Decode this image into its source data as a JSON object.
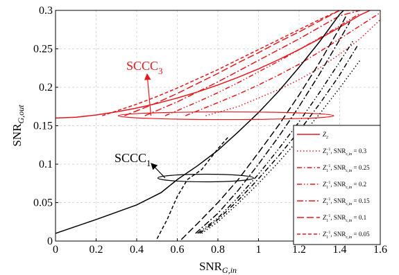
{
  "chart_data": {
    "type": "line",
    "xlabel": "SNR",
    "xlabel_sub": "G,in",
    "ylabel": "SNR",
    "ylabel_sub": "G,out",
    "xlim": [
      0,
      1.6
    ],
    "ylim": [
      0,
      0.3
    ],
    "x_ticks": [
      "0",
      "0.2",
      "0.4",
      "0.6",
      "0.8",
      "1",
      "1.2",
      "1.4",
      "1.6"
    ],
    "y_ticks": [
      "0",
      "0.05",
      "0.1",
      "0.15",
      "0.2",
      "0.25",
      "0.3"
    ],
    "grid": true,
    "legend_position": "bottom-right",
    "legend_entry_label": ", SNR",
    "legend_entry_sub": "c,in",
    "legend_eq": " = ",
    "annotations": [
      {
        "text": "SCCC",
        "sub": "3",
        "color": "#e8161c"
      },
      {
        "text": "SCCC",
        "sub": "1",
        "color": "#000000"
      }
    ],
    "series": [
      {
        "name": "Z2",
        "legend_main": "Z",
        "legend_sub": "2",
        "legend_sup": "",
        "legend_snr": "",
        "color": "#e8161c",
        "dash": "solid",
        "x": [
          0,
          0.1,
          0.2,
          0.3,
          0.4,
          0.5,
          0.6,
          0.7,
          0.8,
          0.9,
          1.0,
          1.1,
          1.2,
          1.3,
          1.4,
          1.5,
          1.55
        ],
        "y": [
          0.16,
          0.161,
          0.164,
          0.168,
          0.173,
          0.179,
          0.186,
          0.194,
          0.203,
          0.213,
          0.224,
          0.236,
          0.249,
          0.263,
          0.278,
          0.294,
          0.3
        ]
      },
      {
        "name": "Z1^-1, SNRc,in = 0.3",
        "legend_main": "Z",
        "legend_sub": "1",
        "legend_sup": "−1",
        "legend_snr": "0.3",
        "color": "#e8161c",
        "dash": "1.5,3",
        "x": [
          0.74,
          0.9,
          1.0,
          1.1,
          1.2,
          1.3,
          1.4,
          1.5,
          1.6
        ],
        "y": [
          0.163,
          0.175,
          0.186,
          0.197,
          0.21,
          0.225,
          0.243,
          0.263,
          0.288
        ]
      },
      {
        "name": "Z1^-1, SNRc,in = 0.25",
        "legend_main": "Z",
        "legend_sub": "1",
        "legend_sup": "−1",
        "legend_snr": "0.25",
        "color": "#e8161c",
        "dash": "7,3,1.5,3",
        "x": [
          0.64,
          0.8,
          0.9,
          1.0,
          1.1,
          1.2,
          1.3,
          1.4,
          1.5,
          1.6
        ],
        "y": [
          0.163,
          0.18,
          0.191,
          0.203,
          0.216,
          0.23,
          0.246,
          0.263,
          0.28,
          0.297
        ]
      },
      {
        "name": "Z1^-1, SNRc,in = 0.2",
        "legend_main": "Z",
        "legend_sub": "1",
        "legend_sup": "−1",
        "legend_snr": "0.2",
        "color": "#e8161c",
        "dash": "7,3,1.5,3,1.5,3",
        "x": [
          0.54,
          0.7,
          0.8,
          0.9,
          1.0,
          1.1,
          1.2,
          1.3,
          1.4,
          1.5
        ],
        "y": [
          0.163,
          0.181,
          0.193,
          0.206,
          0.22,
          0.234,
          0.249,
          0.264,
          0.28,
          0.296
        ]
      },
      {
        "name": "Z1^-1, SNRc,in = 0.15",
        "legend_main": "Z",
        "legend_sub": "1",
        "legend_sup": "−1",
        "legend_snr": "0.15",
        "color": "#e8161c",
        "dash": "9,3,2,3",
        "x": [
          0.44,
          0.6,
          0.7,
          0.8,
          0.9,
          1.0,
          1.1,
          1.2,
          1.3,
          1.4,
          1.5
        ],
        "y": [
          0.163,
          0.181,
          0.194,
          0.207,
          0.221,
          0.235,
          0.249,
          0.263,
          0.278,
          0.293,
          0.3
        ]
      },
      {
        "name": "Z1^-1, SNRc,in = 0.1",
        "legend_main": "Z",
        "legend_sub": "1",
        "legend_sup": "−1",
        "legend_snr": "0.1",
        "color": "#e8161c",
        "dash": "10,4",
        "x": [
          0.34,
          0.5,
          0.6,
          0.7,
          0.8,
          0.9,
          1.0,
          1.1,
          1.2,
          1.3,
          1.4,
          1.5
        ],
        "y": [
          0.163,
          0.18,
          0.192,
          0.205,
          0.218,
          0.232,
          0.245,
          0.259,
          0.272,
          0.286,
          0.3,
          0.3
        ]
      },
      {
        "name": "Z1^-1, SNRc,in = 0.05",
        "legend_main": "Z",
        "legend_sub": "1",
        "legend_sup": "−1",
        "legend_snr": "0.05",
        "color": "#e8161c",
        "dash": "5,3",
        "x": [
          0.23,
          0.4,
          0.5,
          0.6,
          0.7,
          0.8,
          0.9,
          1.0,
          1.1,
          1.2,
          1.3,
          1.4,
          1.5
        ],
        "y": [
          0.163,
          0.178,
          0.188,
          0.199,
          0.211,
          0.223,
          0.236,
          0.249,
          0.262,
          0.275,
          0.288,
          0.3,
          0.3
        ]
      },
      {
        "name": "SCCC1 Z2",
        "color": "#000000",
        "dash": "solid",
        "x": [
          0,
          0.2,
          0.4,
          0.52,
          0.6,
          0.7,
          0.8,
          0.9,
          1.0,
          1.1,
          1.2,
          1.3,
          1.4,
          1.42
        ],
        "y": [
          0.01,
          0.028,
          0.047,
          0.063,
          0.08,
          0.098,
          0.118,
          0.142,
          0.167,
          0.195,
          0.226,
          0.259,
          0.295,
          0.3
        ]
      },
      {
        "name": "SCCC1 0.3",
        "color": "#000000",
        "dash": "1.5,3",
        "x": [
          0.72,
          0.8,
          0.9,
          1.0,
          1.1,
          1.2,
          1.3,
          1.4,
          1.5
        ],
        "y": [
          0.01,
          0.025,
          0.049,
          0.075,
          0.103,
          0.133,
          0.165,
          0.199,
          0.235
        ]
      },
      {
        "name": "SCCC1 0.25",
        "color": "#000000",
        "dash": "7,3,1.5,3",
        "x": [
          0.71,
          0.8,
          0.9,
          1.0,
          1.1,
          1.2,
          1.3,
          1.4,
          1.49
        ],
        "y": [
          0.01,
          0.028,
          0.053,
          0.081,
          0.111,
          0.143,
          0.178,
          0.216,
          0.255
        ]
      },
      {
        "name": "SCCC1 0.2",
        "color": "#000000",
        "dash": "7,3,1.5,3,1.5,3",
        "x": [
          0.7,
          0.8,
          0.9,
          1.0,
          1.1,
          1.2,
          1.3,
          1.4,
          1.47
        ],
        "y": [
          0.01,
          0.03,
          0.057,
          0.087,
          0.12,
          0.155,
          0.193,
          0.233,
          0.262
        ]
      },
      {
        "name": "SCCC1 0.15",
        "color": "#000000",
        "dash": "9,3,2,3",
        "x": [
          0.69,
          0.8,
          0.9,
          1.0,
          1.1,
          1.2,
          1.3,
          1.4,
          1.45
        ],
        "y": [
          0.01,
          0.036,
          0.066,
          0.1,
          0.136,
          0.175,
          0.217,
          0.262,
          0.285
        ]
      },
      {
        "name": "SCCC1 0.1",
        "color": "#000000",
        "dash": "10,4",
        "x": [
          0.62,
          0.7,
          0.8,
          0.85,
          0.9,
          1.0,
          1.1,
          1.2,
          1.3,
          1.4,
          1.43
        ],
        "y": [
          0.002,
          0.023,
          0.05,
          0.065,
          0.08,
          0.115,
          0.151,
          0.19,
          0.232,
          0.277,
          0.292
        ]
      },
      {
        "name": "SCCC1 0.05",
        "color": "#000000",
        "dash": "5,3",
        "x": [
          0.5,
          0.55,
          0.6,
          0.65,
          0.72,
          0.8,
          0.85
        ],
        "y": [
          0.003,
          0.028,
          0.058,
          0.08,
          0.093,
          0.12,
          0.135
        ]
      }
    ]
  }
}
